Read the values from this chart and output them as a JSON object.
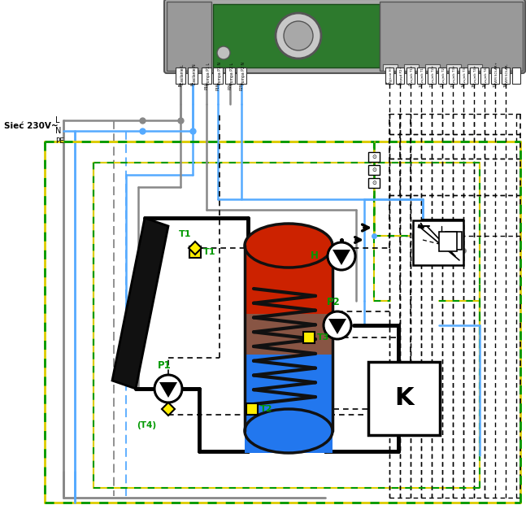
{
  "bg_color": "#ffffff",
  "colors": {
    "gray": "#888888",
    "blue": "#55aaff",
    "gy_yellow": "#ddcc00",
    "gy_green": "#009900",
    "black": "#111111",
    "red_top": "#cc2200",
    "blue_bot": "#2277ee",
    "teal_mid": "#336677",
    "green_text": "#009900",
    "yellow_sensor": "#ffee00",
    "dark": "#111111",
    "ctrl_body": "#aaaaaa",
    "ctrl_pcb": "#2d7a2d"
  },
  "wire_label": "Sieć 230V~",
  "L_label": "L",
  "N_label": "N",
  "PE_label": "PE"
}
